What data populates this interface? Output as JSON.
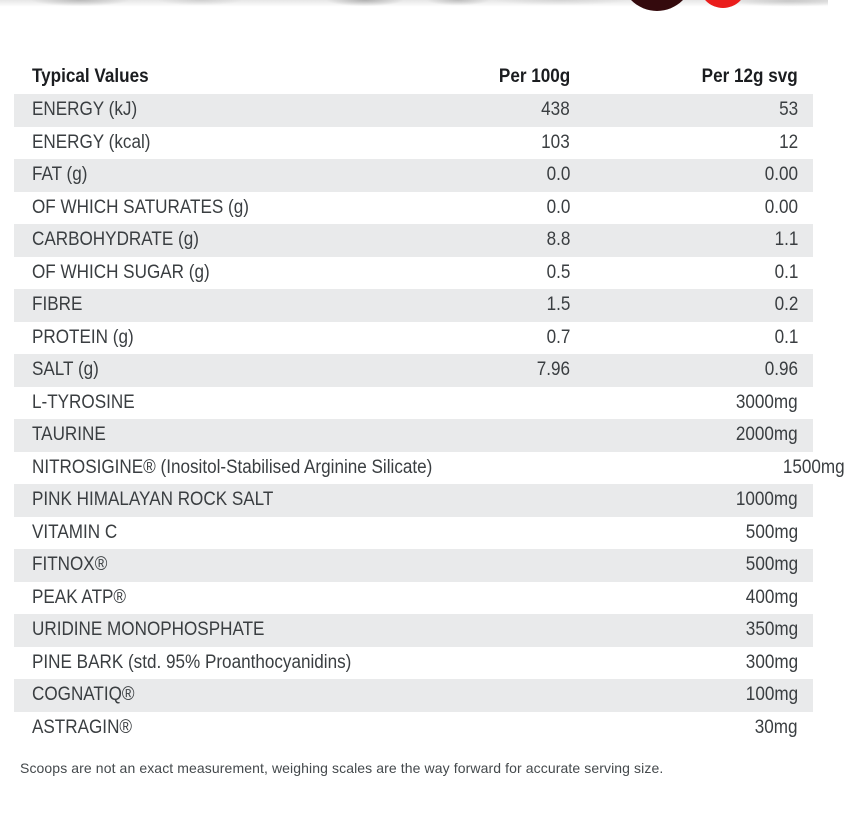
{
  "page": {
    "background_color": "#ffffff",
    "accent_red": "#e41e20",
    "row_shade_color": "#e9eaeb"
  },
  "badges": {
    "left_icon": "red-badge-partial-icon",
    "right_icon": "red-badge-partial-icon"
  },
  "table": {
    "header": {
      "label": "Typical Values",
      "per_100g": "Per 100g",
      "per_serving": "Per 12g svg"
    },
    "rows": [
      {
        "label": "ENERGY (kJ)",
        "per_100g": "438",
        "per_serving": "53"
      },
      {
        "label": "ENERGY (kcal)",
        "per_100g": "103",
        "per_serving": "12"
      },
      {
        "label": "FAT (g)",
        "per_100g": "0.0",
        "per_serving": "0.00"
      },
      {
        "label": "OF WHICH SATURATES (g)",
        "per_100g": "0.0",
        "per_serving": "0.00"
      },
      {
        "label": "CARBOHYDRATE (g)",
        "per_100g": "8.8",
        "per_serving": "1.1"
      },
      {
        "label": "OF WHICH SUGAR (g)",
        "per_100g": "0.5",
        "per_serving": "0.1"
      },
      {
        "label": "FIBRE",
        "per_100g": "1.5",
        "per_serving": "0.2"
      },
      {
        "label": "PROTEIN (g)",
        "per_100g": "0.7",
        "per_serving": "0.1"
      },
      {
        "label": "SALT (g)",
        "per_100g": "7.96",
        "per_serving": "0.96"
      },
      {
        "label": "L-TYROSINE",
        "per_100g": "",
        "per_serving": "3000mg"
      },
      {
        "label": "TAURINE",
        "per_100g": "",
        "per_serving": "2000mg"
      },
      {
        "label": "NITROSIGINE® (Inositol-Stabilised Arginine Silicate)",
        "per_100g": "",
        "per_serving": "1500mg"
      },
      {
        "label": "PINK HIMALAYAN ROCK SALT",
        "per_100g": "",
        "per_serving": "1000mg"
      },
      {
        "label": "VITAMIN C",
        "per_100g": "",
        "per_serving": "500mg"
      },
      {
        "label": "FITNOX®",
        "per_100g": "",
        "per_serving": "500mg"
      },
      {
        "label": "PEAK ATP®",
        "per_100g": "",
        "per_serving": "400mg"
      },
      {
        "label": "URIDINE MONOPHOSPHATE",
        "per_100g": "",
        "per_serving": "350mg"
      },
      {
        "label": "PINE BARK (std. 95% Proanthocyanidins)",
        "per_100g": "",
        "per_serving": "300mg"
      },
      {
        "label": "COGNATIQ®",
        "per_100g": "",
        "per_serving": "100mg"
      },
      {
        "label": "ASTRAGIN®",
        "per_100g": "",
        "per_serving": "30mg"
      }
    ]
  },
  "footer": {
    "note": "Scoops are not an exact measurement, weighing scales are the way forward for accurate serving size."
  }
}
